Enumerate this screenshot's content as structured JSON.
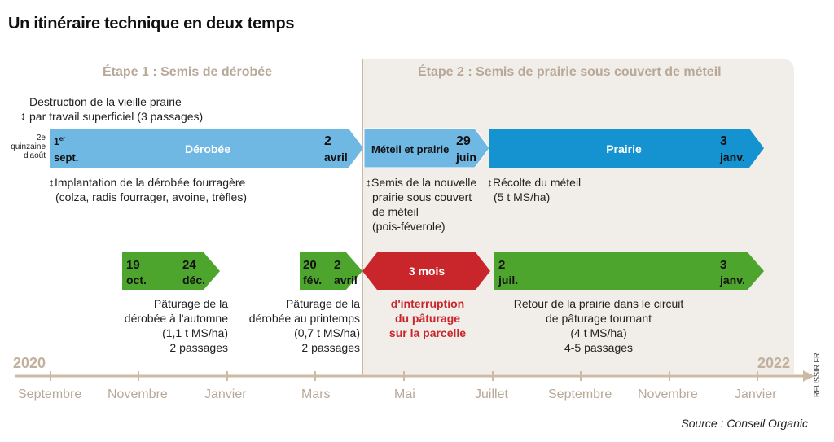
{
  "title": "Un itinéraire technique en deux temps",
  "stage1": "Étape 1 : Semis de dérobée",
  "stage2": "Étape 2 : Semis de prairie sous couvert de méteil",
  "notes": {
    "destruction": [
      "Destruction de la vieille prairie",
      "par travail superficiel (3 passages)"
    ],
    "quinzaine": [
      "2e",
      "quinzaine",
      "d'août"
    ],
    "implantation": [
      "Implantation de la dérobée fourragère",
      "(colza, radis fourrager, avoine, trèfles)"
    ],
    "semis": [
      "Semis de la nouvelle",
      "prairie sous couvert",
      "de méteil",
      "(pois-féverole)"
    ],
    "recolte": [
      "Récolte du méteil",
      "(5 t MS/ha)"
    ],
    "paturage_automne": [
      "Pâturage de la",
      "dérobée à l'automne",
      "(1,1 t MS/ha)",
      "2 passages"
    ],
    "paturage_printemps": [
      "Pâturage de la",
      "dérobée au printemps",
      "(0,7 t MS/ha)",
      "2 passages"
    ],
    "interruption": [
      "d'interruption",
      "du pâturage",
      "sur la parcelle"
    ],
    "retour": [
      "Retour de la prairie dans le circuit",
      "de pâturage tournant",
      "(4 t MS/ha)",
      "4-5 passages"
    ]
  },
  "bars": {
    "derobee": {
      "label": "Dérobée",
      "start": [
        "1er",
        "sept."
      ],
      "end": [
        "2",
        "avril"
      ]
    },
    "meteil": {
      "label": "Méteil et prairie",
      "end": [
        "29",
        "juin"
      ]
    },
    "prairie": {
      "label": "Prairie",
      "end": [
        "3",
        "janv."
      ]
    },
    "graze1": {
      "start": [
        "19",
        "oct."
      ],
      "end": [
        "24",
        "déc."
      ]
    },
    "graze2": {
      "start": [
        "20",
        "fév."
      ],
      "end": [
        "2",
        "avril"
      ]
    },
    "interruption": {
      "label": "3 mois"
    },
    "graze3": {
      "start": [
        "2",
        "juil."
      ],
      "end": [
        "3",
        "janv."
      ]
    }
  },
  "years": {
    "start": "2020",
    "end": "2022"
  },
  "months": [
    "Septembre",
    "Novembre",
    "Janvier",
    "Mars",
    "Mai",
    "Juillet",
    "Septembre",
    "Novembre",
    "Janvier"
  ],
  "source": "Source : Conseil Organic",
  "credit": "REUSSIR.FR",
  "colors": {
    "blue_light": "#6fb8e3",
    "blue_dark": "#1592d0",
    "green": "#4ea52d",
    "red": "#c9262c",
    "axis": "#cdbaa5"
  }
}
